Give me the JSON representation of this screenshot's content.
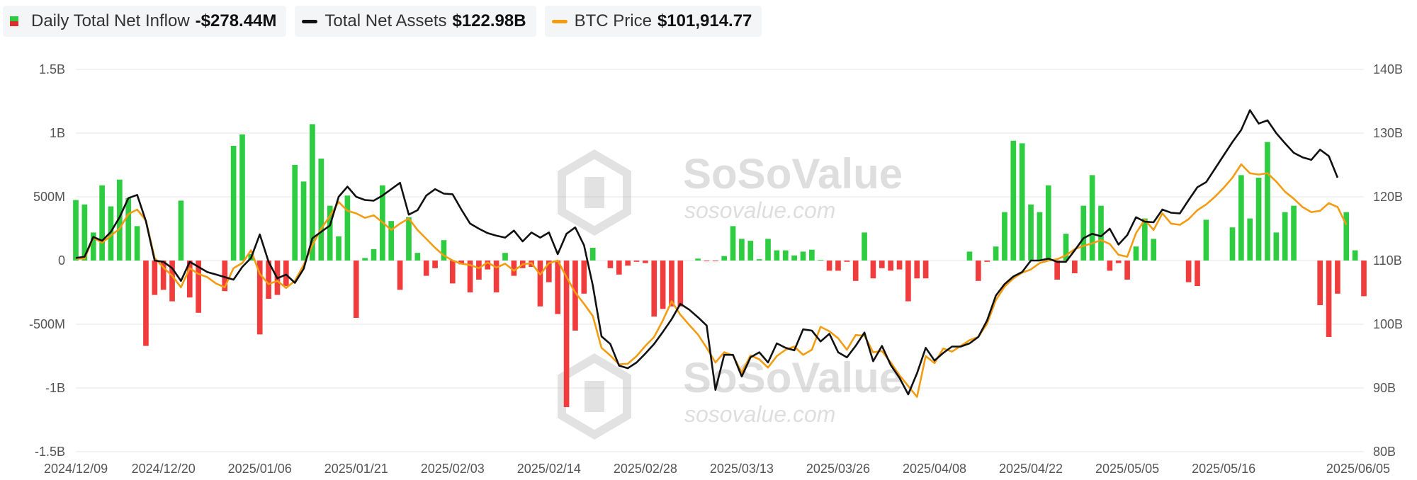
{
  "legend": {
    "inflow_label": "Daily Total Net Inflow",
    "inflow_value": "-$278.44M",
    "assets_label": "Total Net Assets",
    "assets_value": "$122.98B",
    "btc_label": "BTC Price",
    "btc_value": "$101,914.77"
  },
  "watermark": {
    "brand": "SoSoValue",
    "url": "sosovalue.com"
  },
  "colors": {
    "positive": "#2ecc40",
    "negative": "#f03c3c",
    "assets": "#111111",
    "btc": "#f39c12",
    "grid": "#e6e6e6"
  },
  "chart_data": {
    "type": "bar",
    "x_tick_labels": [
      "2024/12/09",
      "2024/12/20",
      "2025/01/06",
      "2025/01/21",
      "2025/02/03",
      "2025/02/14",
      "2025/02/28",
      "2025/03/13",
      "2025/03/26",
      "2025/04/08",
      "2025/04/22",
      "2025/05/05",
      "2025/05/16",
      "2025/06/05"
    ],
    "x_tick_index": [
      0,
      10,
      21,
      32,
      43,
      54,
      65,
      76,
      87,
      98,
      109,
      120,
      131,
      148
    ],
    "left_axis": {
      "ylim": [
        -1500,
        1500
      ],
      "ticks": [
        -1500,
        -1000,
        -500,
        0,
        500,
        1000,
        1500
      ],
      "tick_labels": [
        "-1.5B",
        "-1B",
        "-500M",
        "0",
        "500M",
        "1B",
        "1.5B"
      ]
    },
    "right_axis": {
      "ylim": [
        80,
        140
      ],
      "ticks": [
        80,
        90,
        100,
        110,
        120,
        130,
        140
      ],
      "tick_labels": [
        "80B",
        "90B",
        "100B",
        "110B",
        "120B",
        "130B",
        "140B"
      ]
    },
    "series": [
      {
        "name": "Daily Total Net Inflow",
        "axis": "left",
        "kind": "bar",
        "values": [
          475,
          440,
          220,
          590,
          425,
          635,
          490,
          270,
          -670,
          -270,
          -230,
          -320,
          470,
          -290,
          -410,
          0,
          0,
          -240,
          900,
          990,
          50,
          -580,
          -300,
          -270,
          -200,
          750,
          620,
          1070,
          800,
          430,
          190,
          510,
          -450,
          20,
          90,
          590,
          310,
          -230,
          340,
          60,
          -120,
          -60,
          160,
          -180,
          -30,
          -250,
          -150,
          -70,
          -250,
          60,
          -120,
          -60,
          -50,
          -360,
          -170,
          -420,
          -1150,
          -550,
          -260,
          100,
          0,
          -60,
          -110,
          -40,
          -10,
          -20,
          -440,
          -380,
          -360,
          -360,
          0,
          15,
          -5,
          -5,
          35,
          270,
          170,
          155,
          10,
          170,
          80,
          80,
          40,
          70,
          85,
          5,
          -80,
          -80,
          -10,
          -160,
          220,
          -140,
          -60,
          -80,
          -70,
          -320,
          -140,
          -140,
          0,
          0,
          0,
          0,
          70,
          -160,
          -10,
          110,
          380,
          940,
          920,
          440,
          380,
          590,
          -150,
          210,
          -100,
          430,
          670,
          430,
          -80,
          -20,
          -150,
          110,
          330,
          170,
          0,
          0,
          0,
          -170,
          -200,
          320,
          0,
          0,
          260,
          670,
          330,
          650,
          930,
          220,
          380,
          430,
          0,
          0,
          -350,
          -600,
          -260,
          380,
          80,
          -280
        ]
      },
      {
        "name": "Total Net Assets",
        "axis": "right",
        "kind": "line",
        "values": [
          110.4,
          110.6,
          113.7,
          113.1,
          114.5,
          116.8,
          119.8,
          120.3,
          116.2,
          110.0,
          109.8,
          108.8,
          106.8,
          109.8,
          109.0,
          108.2,
          107.8,
          107.4,
          107.0,
          109.0,
          110.4,
          114.1,
          109.8,
          107.2,
          107.8,
          106.5,
          108.7,
          113.5,
          114.5,
          115.5,
          120.0,
          121.6,
          120.0,
          119.5,
          119.4,
          120.2,
          121.2,
          122.2,
          117.2,
          117.9,
          120.2,
          121.2,
          120.5,
          120.4,
          118.0,
          115.8,
          115.0,
          114.3,
          113.9,
          113.6,
          114.7,
          113.0,
          114.4,
          113.6,
          114.4,
          111.0,
          114.2,
          115.2,
          112.4,
          106.1,
          98.1,
          96.9,
          93.5,
          93.1,
          94.0,
          95.4,
          96.9,
          98.8,
          100.8,
          103.2,
          102.3,
          101.1,
          99.8,
          89.7,
          95.2,
          95.2,
          91.8,
          94.8,
          95.6,
          94.0,
          97.0,
          96.3,
          95.9,
          99.2,
          99.0,
          97.3,
          98.5,
          95.6,
          94.8,
          96.6,
          98.7,
          94.2,
          96.6,
          93.6,
          91.6,
          89.0,
          92.3,
          96.3,
          94.3,
          95.5,
          96.5,
          96.5,
          97.0,
          98.0,
          100.6,
          104.5,
          106.3,
          107.5,
          108.2,
          110.0,
          110.0,
          110.3,
          109.8,
          109.8,
          111.6,
          113.5,
          114.2,
          113.8,
          115.0,
          112.5,
          114.0,
          116.8,
          116.1,
          116.0,
          118.0,
          117.5,
          117.4,
          119.5,
          121.5,
          122.3,
          124.4,
          126.5,
          128.6,
          130.5,
          133.6,
          131.5,
          132.0,
          130.0,
          128.4,
          126.9,
          126.2,
          125.8,
          127.4,
          126.4,
          123.0
        ]
      },
      {
        "name": "BTC Price",
        "axis": "right",
        "kind": "line",
        "values": [
          110.3,
          110.3,
          113.6,
          112.8,
          113.9,
          115.0,
          117.3,
          118.0,
          116.3,
          110.4,
          108.9,
          107.6,
          105.8,
          108.8,
          107.9,
          107.4,
          106.4,
          105.8,
          108.8,
          109.6,
          111.6,
          107.9,
          106.3,
          106.8,
          105.7,
          106.8,
          109.3,
          112.4,
          115.0,
          117.0,
          119.2,
          117.8,
          117.4,
          116.7,
          117.1,
          116.0,
          114.8,
          115.8,
          116.6,
          114.8,
          113.4,
          112.0,
          110.8,
          110.0,
          109.5,
          109.3,
          108.8,
          109.7,
          108.9,
          109.5,
          108.4,
          109.4,
          109.6,
          107.8,
          109.6,
          110.0,
          107.4,
          105.0,
          103.2,
          101.3,
          96.3,
          95.1,
          93.7,
          93.8,
          95.0,
          96.6,
          98.0,
          100.6,
          103.6,
          101.5,
          99.9,
          98.4,
          96.3,
          94.0,
          95.6,
          95.1,
          92.4,
          95.1,
          94.5,
          93.2,
          95.0,
          96.0,
          96.5,
          95.2,
          96.0,
          99.6,
          98.9,
          97.8,
          96.0,
          98.3,
          98.2,
          95.6,
          95.8,
          94.0,
          92.0,
          90.3,
          88.6,
          95.0,
          93.9,
          96.2,
          95.7,
          96.6,
          97.5,
          98.0,
          100.1,
          103.8,
          105.9,
          107.2,
          108.1,
          108.6,
          109.6,
          110.0,
          110.2,
          110.8,
          111.8,
          112.3,
          112.7,
          113.2,
          112.6,
          110.9,
          110.6,
          114.3,
          116.4,
          114.8,
          117.4,
          115.8,
          115.6,
          116.5,
          117.9,
          118.8,
          120.0,
          121.4,
          123.0,
          125.1,
          123.7,
          123.5,
          123.7,
          122.4,
          120.8,
          119.7,
          118.4,
          117.6,
          117.8,
          119.0,
          118.4,
          115.6
        ]
      }
    ]
  }
}
